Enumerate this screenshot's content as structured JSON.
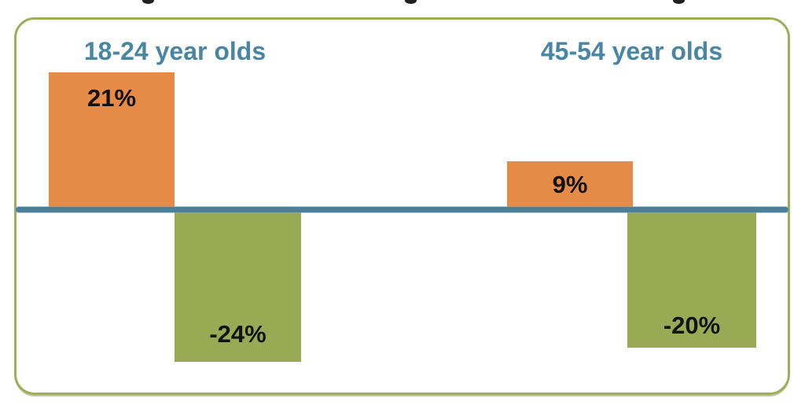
{
  "colors": {
    "orange": "#E68A47",
    "green": "#9AAA54",
    "axis": "#4C7F98",
    "heading": "#4886A3",
    "frame-border": "#9CAF57"
  },
  "chart_data": {
    "type": "bar",
    "categories": [
      "18-24 year olds",
      "45-54 year olds"
    ],
    "series": [
      {
        "name": "positive-change",
        "color": "#E68A47",
        "values": [
          21,
          9
        ],
        "labels": [
          "21%",
          "9%"
        ]
      },
      {
        "name": "negative-change",
        "color": "#9AAA54",
        "values": [
          -24,
          -20
        ],
        "labels": [
          "-24%",
          "-20%"
        ]
      }
    ],
    "baseline": 0,
    "ylim": [
      -26,
      23
    ],
    "grid": false,
    "legend": false,
    "xlabel": "",
    "ylabel": "",
    "title": "",
    "title_cropped_at_top_edge": true,
    "value_label_position": "inside-bar",
    "axis_line": "thick horizontal zero line across full chart width"
  }
}
